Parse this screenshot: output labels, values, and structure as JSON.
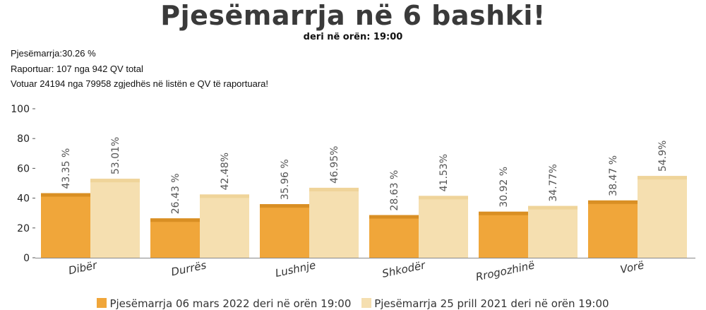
{
  "header": {
    "title": "Pjesëmarrja në 6 bashki!",
    "subtitle": "deri në orën: 19:00"
  },
  "stats": {
    "turnout": "Pjesëmarrja:30.26 %",
    "reported": "Raportuar: 107 nga 942 QV total",
    "voted": "Votuar 24194 nga 79958 zgjedhës në listën e QV të raportuara!"
  },
  "colors": {
    "series_2022": "#f0a63a",
    "series_2021": "#f5dfb0"
  },
  "chart_data": {
    "type": "bar",
    "title": "Pjesëmarrja në 6 bashki!",
    "subtitle": "deri në orën: 19:00",
    "xlabel": "",
    "ylabel": "",
    "ylim": [
      0,
      100
    ],
    "yticks": [
      "0",
      "20",
      "40",
      "60",
      "80",
      "100"
    ],
    "grid": false,
    "legend_position": "bottom",
    "categories": [
      "Dibër",
      "Durrës",
      "Lushnje",
      "Shkodër",
      "Rrogozhinë",
      "Vorë"
    ],
    "series": [
      {
        "name": "Pjesëmarrja 06 mars 2022 deri në orën 19:00",
        "values": [
          43.35,
          26.43,
          35.96,
          28.63,
          30.92,
          38.47
        ],
        "labels": [
          "43.35 %",
          "26.43 %",
          "35.96 %",
          "28.63 %",
          "30.92 %",
          "38.47 %"
        ]
      },
      {
        "name": "Pjesëmarrja 25 prill 2021 deri në orën 19:00",
        "values": [
          53.01,
          42.48,
          46.95,
          41.53,
          34.77,
          54.9
        ],
        "labels": [
          "53.01%",
          "42.48%",
          "46.95%",
          "41.53%",
          "34.77%",
          "54.9%"
        ]
      }
    ]
  }
}
